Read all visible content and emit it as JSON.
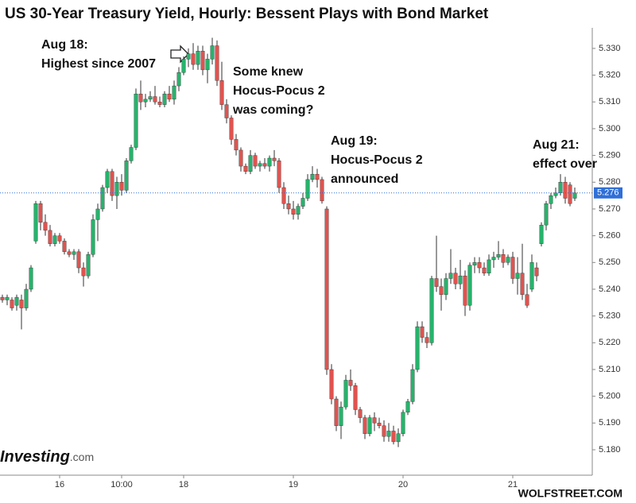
{
  "chart_data": {
    "type": "candlestick",
    "title": "US 30-Year Treasury Yield, Hourly: Bessent Plays with Bond Market",
    "categories": [
      null,
      null,
      null,
      null,
      null,
      null,
      null,
      null,
      null,
      null,
      null,
      null,
      "16",
      null,
      null,
      null,
      null,
      null,
      null,
      null,
      null,
      null,
      null,
      null,
      null,
      "10:00",
      null,
      null,
      null,
      null,
      null,
      null,
      null,
      null,
      null,
      null,
      null,
      null,
      "18",
      null,
      null,
      null,
      null,
      null,
      null,
      null,
      null,
      null,
      null,
      null,
      null,
      null,
      null,
      null,
      null,
      null,
      null,
      null,
      null,
      null,
      null,
      "19",
      null,
      null,
      null,
      null,
      null,
      null,
      null,
      null,
      null,
      null,
      null,
      null,
      null,
      null,
      null,
      null,
      null,
      null,
      null,
      null,
      null,
      null,
      "20",
      null,
      null,
      null,
      null,
      null,
      null,
      null,
      null,
      null,
      null,
      null,
      null,
      null,
      null,
      null,
      null,
      null,
      null,
      null,
      null,
      null,
      null,
      "21",
      null,
      null,
      null,
      null,
      null,
      null,
      null,
      null,
      null,
      null,
      null,
      null,
      null
    ],
    "open": [
      5.237,
      5.236,
      5.236,
      5.234,
      5.236,
      5.233,
      5.24,
      5.258,
      5.272,
      5.265,
      5.262,
      5.257,
      5.26,
      5.258,
      5.254,
      5.253,
      5.254,
      5.248,
      5.245,
      5.253,
      5.266,
      5.27,
      5.278,
      5.284,
      5.275,
      5.28,
      5.277,
      5.288,
      5.293,
      5.313,
      5.31,
      5.311,
      5.312,
      5.31,
      5.309,
      5.313,
      5.311,
      5.316,
      5.321,
      5.326,
      5.328,
      5.324,
      5.329,
      5.322,
      5.326,
      5.331,
      5.318,
      5.309,
      5.304,
      5.296,
      5.292,
      5.286,
      5.284,
      5.29,
      5.286,
      5.287,
      5.286,
      5.289,
      5.288,
      5.278,
      5.272,
      5.27,
      5.268,
      5.271,
      5.274,
      5.281,
      5.283,
      5.281,
      5.27,
      5.21,
      5.199,
      5.189,
      5.196,
      5.206,
      5.204,
      5.195,
      5.192,
      5.186,
      5.192,
      5.19,
      5.189,
      5.185,
      5.187,
      5.183,
      5.186,
      5.194,
      5.198,
      5.21,
      5.226,
      5.222,
      5.22,
      5.244,
      5.241,
      5.238,
      5.244,
      5.246,
      5.242,
      5.245,
      5.234,
      5.249,
      5.25,
      5.248,
      5.246,
      5.251,
      5.252,
      5.253,
      5.25,
      5.252,
      5.244,
      5.246,
      5.238,
      5.24,
      5.248,
      5.257,
      5.264,
      5.272,
      5.275,
      5.276,
      5.28,
      5.279,
      5.274
    ],
    "high": [
      5.238,
      5.238,
      5.237,
      5.238,
      5.238,
      5.242,
      5.249,
      5.273,
      5.273,
      5.268,
      5.264,
      5.261,
      5.261,
      5.259,
      5.255,
      5.255,
      5.255,
      5.25,
      5.254,
      5.268,
      5.272,
      5.279,
      5.285,
      5.285,
      5.282,
      5.283,
      5.289,
      5.294,
      5.315,
      5.318,
      5.313,
      5.314,
      5.316,
      5.312,
      5.314,
      5.316,
      5.318,
      5.323,
      5.327,
      5.33,
      5.332,
      5.331,
      5.331,
      5.328,
      5.334,
      5.333,
      5.325,
      5.311,
      5.305,
      5.298,
      5.293,
      5.287,
      5.292,
      5.291,
      5.288,
      5.289,
      5.29,
      5.292,
      5.289,
      5.28,
      5.275,
      5.273,
      5.272,
      5.276,
      5.283,
      5.286,
      5.285,
      5.282,
      5.271,
      5.212,
      5.2,
      5.198,
      5.208,
      5.21,
      5.205,
      5.196,
      5.193,
      5.193,
      5.194,
      5.192,
      5.191,
      5.19,
      5.189,
      5.188,
      5.195,
      5.199,
      5.212,
      5.228,
      5.228,
      5.224,
      5.245,
      5.26,
      5.244,
      5.246,
      5.255,
      5.248,
      5.251,
      5.247,
      5.25,
      5.252,
      5.252,
      5.25,
      5.253,
      5.254,
      5.258,
      5.255,
      5.253,
      5.254,
      5.252,
      5.257,
      5.242,
      5.253,
      5.25,
      5.265,
      5.273,
      5.276,
      5.278,
      5.283,
      5.282,
      5.28,
      5.278
    ],
    "low": [
      5.235,
      5.234,
      5.232,
      5.232,
      5.225,
      5.232,
      5.239,
      5.257,
      5.262,
      5.26,
      5.256,
      5.256,
      5.257,
      5.253,
      5.252,
      5.251,
      5.246,
      5.241,
      5.244,
      5.252,
      5.258,
      5.269,
      5.276,
      5.273,
      5.27,
      5.275,
      5.276,
      5.287,
      5.292,
      5.307,
      5.308,
      5.31,
      5.309,
      5.308,
      5.308,
      5.31,
      5.309,
      5.314,
      5.32,
      5.323,
      5.322,
      5.322,
      5.32,
      5.317,
      5.324,
      5.316,
      5.307,
      5.302,
      5.294,
      5.29,
      5.284,
      5.283,
      5.283,
      5.285,
      5.284,
      5.285,
      5.284,
      5.286,
      5.276,
      5.27,
      5.268,
      5.266,
      5.266,
      5.27,
      5.273,
      5.28,
      5.278,
      5.272,
      5.208,
      5.197,
      5.187,
      5.184,
      5.195,
      5.202,
      5.193,
      5.19,
      5.184,
      5.185,
      5.187,
      5.188,
      5.183,
      5.183,
      5.182,
      5.181,
      5.185,
      5.193,
      5.197,
      5.209,
      5.22,
      5.218,
      5.219,
      5.239,
      5.232,
      5.236,
      5.242,
      5.24,
      5.24,
      5.23,
      5.232,
      5.246,
      5.246,
      5.245,
      5.245,
      5.248,
      5.251,
      5.248,
      5.249,
      5.242,
      5.238,
      5.236,
      5.233,
      5.239,
      5.243,
      5.256,
      5.262,
      5.27,
      5.274,
      5.275,
      5.272,
      5.271,
      5.273
    ],
    "close": [
      5.236,
      5.237,
      5.233,
      5.237,
      5.233,
      5.24,
      5.248,
      5.272,
      5.265,
      5.262,
      5.257,
      5.26,
      5.258,
      5.254,
      5.253,
      5.254,
      5.248,
      5.245,
      5.253,
      5.266,
      5.27,
      5.278,
      5.284,
      5.275,
      5.28,
      5.277,
      5.288,
      5.293,
      5.313,
      5.31,
      5.311,
      5.312,
      5.31,
      5.309,
      5.313,
      5.311,
      5.316,
      5.321,
      5.326,
      5.328,
      5.324,
      5.329,
      5.322,
      5.326,
      5.331,
      5.318,
      5.309,
      5.304,
      5.296,
      5.292,
      5.286,
      5.284,
      5.29,
      5.286,
      5.287,
      5.286,
      5.289,
      5.288,
      5.278,
      5.272,
      5.27,
      5.268,
      5.271,
      5.274,
      5.281,
      5.283,
      5.281,
      5.273,
      5.21,
      5.199,
      5.189,
      5.196,
      5.206,
      5.204,
      5.195,
      5.192,
      5.186,
      5.192,
      5.19,
      5.189,
      5.185,
      5.187,
      5.183,
      5.186,
      5.194,
      5.198,
      5.21,
      5.226,
      5.222,
      5.22,
      5.244,
      5.241,
      5.238,
      5.244,
      5.246,
      5.242,
      5.245,
      5.234,
      5.249,
      5.25,
      5.248,
      5.246,
      5.251,
      5.252,
      5.253,
      5.25,
      5.252,
      5.244,
      5.246,
      5.238,
      5.234,
      5.25,
      5.245,
      5.264,
      5.272,
      5.275,
      5.276,
      5.28,
      5.274,
      5.272,
      5.276
    ],
    "up_color": "#26b36b",
    "down_color": "#e0534f",
    "ylim": [
      5.1705,
      5.3377
    ],
    "yticks": [
      {
        "value": 5.18,
        "label": "5.180"
      },
      {
        "value": 5.19,
        "label": "5.190"
      },
      {
        "value": 5.2,
        "label": "5.200"
      },
      {
        "value": 5.21,
        "label": "5.210"
      },
      {
        "value": 5.22,
        "label": "5.220"
      },
      {
        "value": 5.23,
        "label": "5.230"
      },
      {
        "value": 5.24,
        "label": "5.240"
      },
      {
        "value": 5.25,
        "label": "5.250"
      },
      {
        "value": 5.26,
        "label": "5.260"
      },
      {
        "value": 5.27,
        "label": "5.270"
      },
      {
        "value": 5.28,
        "label": "5.280"
      },
      {
        "value": 5.29,
        "label": "5.290"
      },
      {
        "value": 5.3,
        "label": "5.300"
      },
      {
        "value": 5.31,
        "label": "5.310"
      },
      {
        "value": 5.32,
        "label": "5.320"
      },
      {
        "value": 5.33,
        "label": "5.330"
      }
    ],
    "last_value": 5.276,
    "last_color": "#2f6fd8",
    "annotations": [
      {
        "lines": [
          "Aug 18:",
          "Highest since 2007"
        ]
      },
      {
        "lines": [
          "Some knew",
          "Hocus-Pocus 2",
          "was coming?"
        ]
      },
      {
        "lines": [
          "Aug 19:",
          "Hocus-Pocus 2",
          "announced"
        ]
      },
      {
        "lines": [
          "Aug 21:",
          "effect over"
        ]
      }
    ],
    "logo": {
      "name": "Investing",
      "suffix": ".com"
    },
    "source": "WOLFSTREET.COM"
  }
}
